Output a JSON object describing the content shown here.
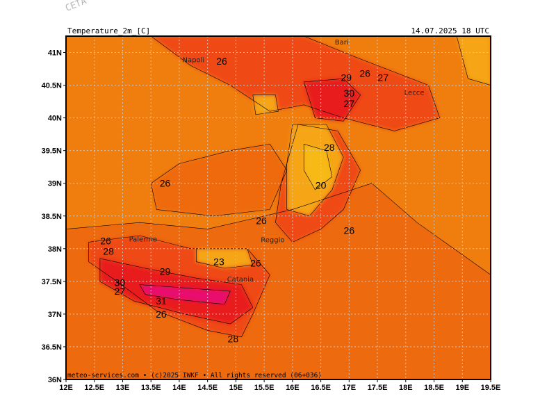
{
  "header": {
    "model_label": "CETA - m",
    "title_left": "Temperature_2m_[C]",
    "title_right": "14.07.2025  18  UTC"
  },
  "footer": {
    "credit": "meteo-services.com • (c)2025 IWKF • All rights reserved (06+036)"
  },
  "axes": {
    "lat_labels": [
      "41N",
      "40.5N",
      "40N",
      "39.5N",
      "39N",
      "38.5N",
      "38N",
      "37.5N",
      "37N",
      "36.5N",
      "36N"
    ],
    "lon_labels": [
      "12E",
      "12.5E",
      "13E",
      "13.5E",
      "14E",
      "14.5E",
      "15E",
      "15.5E",
      "16E",
      "16.5E",
      "17E",
      "17.5E",
      "18E",
      "18.5E",
      "19E",
      "19.5E"
    ]
  },
  "colors": {
    "background_sea": "#f07e0f",
    "warm_26": "#ee6a0f",
    "warm_28": "#ef4a12",
    "hot_30": "#e81f1a",
    "very_hot_31": "#e8106e",
    "cool_23": "#f5a512",
    "cool_20": "#f7b918",
    "grid": "#c8c8c8"
  },
  "cities": [
    {
      "name": "Napoli",
      "lon": 14.25,
      "lat": 40.85
    },
    {
      "name": "Bari",
      "lon": 16.87,
      "lat": 41.12
    },
    {
      "name": "Lecce",
      "lon": 18.15,
      "lat": 40.35
    },
    {
      "name": "Palermo",
      "lon": 13.36,
      "lat": 38.11
    },
    {
      "name": "Reggio",
      "lon": 15.65,
      "lat": 38.1
    },
    {
      "name": "Catania",
      "lon": 15.08,
      "lat": 37.5
    }
  ],
  "isotherm_labels": [
    {
      "text": "26",
      "lon": 14.75,
      "lat": 40.87
    },
    {
      "text": "29",
      "lon": 16.95,
      "lat": 40.62
    },
    {
      "text": "26",
      "lon": 17.28,
      "lat": 40.68
    },
    {
      "text": "27",
      "lon": 17.6,
      "lat": 40.62
    },
    {
      "text": "30",
      "lon": 17.0,
      "lat": 40.38
    },
    {
      "text": "27",
      "lon": 17.0,
      "lat": 40.22
    },
    {
      "text": "28",
      "lon": 16.65,
      "lat": 39.55
    },
    {
      "text": "20",
      "lon": 16.5,
      "lat": 38.97
    },
    {
      "text": "26",
      "lon": 13.75,
      "lat": 39.0
    },
    {
      "text": "26",
      "lon": 15.45,
      "lat": 38.43
    },
    {
      "text": "26",
      "lon": 17.0,
      "lat": 38.28
    },
    {
      "text": "26",
      "lon": 12.7,
      "lat": 38.12
    },
    {
      "text": "28",
      "lon": 12.75,
      "lat": 37.96
    },
    {
      "text": "23",
      "lon": 14.7,
      "lat": 37.8
    },
    {
      "text": "26",
      "lon": 15.35,
      "lat": 37.78
    },
    {
      "text": "29",
      "lon": 13.75,
      "lat": 37.65
    },
    {
      "text": "30",
      "lon": 12.95,
      "lat": 37.48
    },
    {
      "text": "27",
      "lon": 12.95,
      "lat": 37.35
    },
    {
      "text": "31",
      "lon": 13.68,
      "lat": 37.2
    },
    {
      "text": "26",
      "lon": 13.68,
      "lat": 37.0
    },
    {
      "text": "28",
      "lon": 14.95,
      "lat": 36.62
    }
  ]
}
